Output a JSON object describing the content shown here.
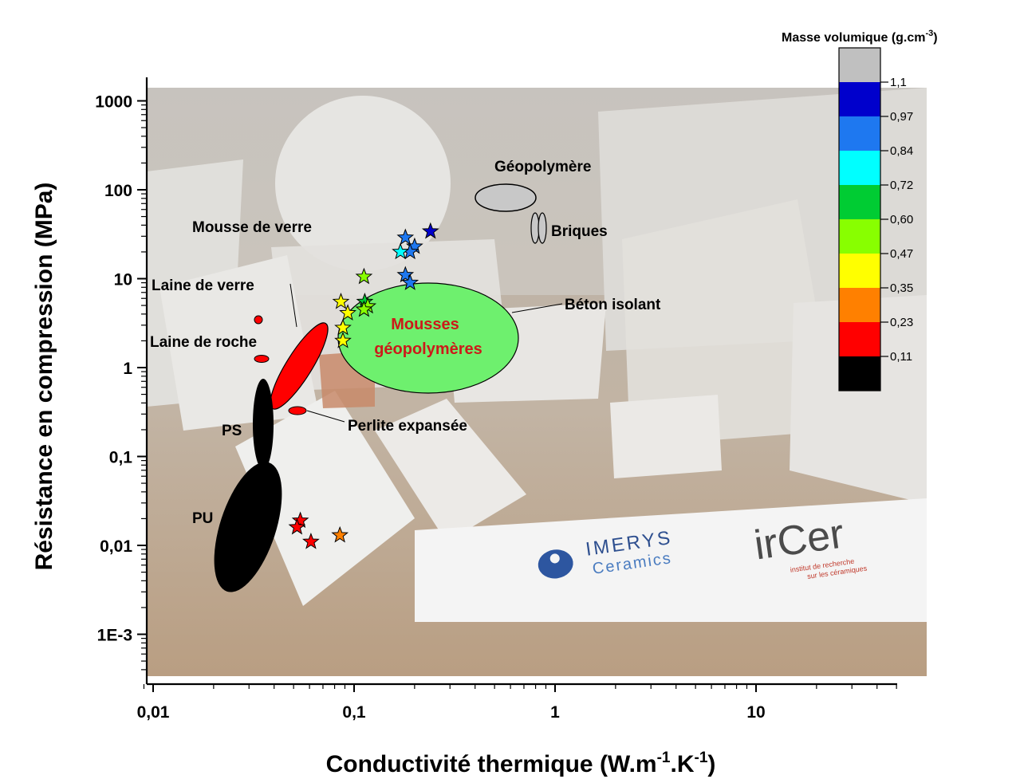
{
  "chart_data": {
    "type": "scatter",
    "x_scale": "log",
    "y_scale": "log",
    "xlim": [
      0.0087,
      50
    ],
    "ylim": [
      0.00032,
      1700
    ],
    "xlabel": {
      "main": "Conductivité thermique (W.m",
      "sup1": "-1",
      "mid": ".K",
      "sup2": "-1",
      "end": ")"
    },
    "ylabel": "Résistance en compression (MPa)",
    "x_ticks": [
      {
        "value": 0.01,
        "label": "0,01"
      },
      {
        "value": 0.1,
        "label": "0,1"
      },
      {
        "value": 1,
        "label": "1"
      },
      {
        "value": 10,
        "label": "10"
      }
    ],
    "y_ticks": [
      {
        "value": 0.001,
        "label": "1E-3"
      },
      {
        "value": 0.01,
        "label": "0,01"
      },
      {
        "value": 0.1,
        "label": "0,1"
      },
      {
        "value": 1,
        "label": "1"
      },
      {
        "value": 10,
        "label": "10"
      },
      {
        "value": 100,
        "label": "100"
      },
      {
        "value": 1000,
        "label": "1000"
      }
    ],
    "colorbar": {
      "title": "Masse volumique (g.cm",
      "title_sup": "-3",
      "title_end": ")",
      "top_color": "#c0c0c0",
      "bands": [
        "#0000cc",
        "#1e78f0",
        "#00ffff",
        "#00cc33",
        "#88ff00",
        "#ffff00",
        "#ff8000",
        "#ff0000",
        "#000000"
      ],
      "ticks": [
        "1,1",
        "0,97",
        "0,84",
        "0,72",
        "0,60",
        "0,47",
        "0,35",
        "0,23",
        "0,11"
      ]
    },
    "materials": [
      {
        "name": "Géopolymère",
        "x": 0.55,
        "y": 80,
        "color": "#c8c8c8"
      },
      {
        "name": "Briques",
        "x": 0.8,
        "y": 30,
        "color": "#c8c8c8"
      },
      {
        "name": "Mousse de verre",
        "x": 0.055,
        "y": 1.3,
        "color": "#ff0000"
      },
      {
        "name": "Laine de verre",
        "x": 0.033,
        "y": 3.3,
        "color": "#ff0000"
      },
      {
        "name": "Laine de roche",
        "x": 0.034,
        "y": 1.1,
        "color": "#ff0000"
      },
      {
        "name": "Perlite expansée",
        "x": 0.046,
        "y": 0.33,
        "color": "#ff0000"
      },
      {
        "name": "PS",
        "x": 0.036,
        "y": 0.1,
        "color": "#000000"
      },
      {
        "name": "PU",
        "x": 0.029,
        "y": 0.01,
        "color": "#000000"
      },
      {
        "name": "Béton isolant",
        "x": 0.2,
        "y": 3,
        "color": "#6ef06e"
      },
      {
        "name": "Mousses géopolymères",
        "x": 0.17,
        "y": 3,
        "color": "#6ef06e"
      }
    ],
    "stars": [
      {
        "x": 0.24,
        "y": 34,
        "color": "#0000cc"
      },
      {
        "x": 0.18,
        "y": 29,
        "color": "#1e78f0"
      },
      {
        "x": 0.2,
        "y": 23,
        "color": "#1e78f0"
      },
      {
        "x": 0.19,
        "y": 20,
        "color": "#1e78f0"
      },
      {
        "x": 0.17,
        "y": 20,
        "color": "#00ffff"
      },
      {
        "x": 0.18,
        "y": 11,
        "color": "#1e78f0"
      },
      {
        "x": 0.19,
        "y": 9,
        "color": "#1e78f0"
      },
      {
        "x": 0.112,
        "y": 10.5,
        "color": "#88ff00"
      },
      {
        "x": 0.086,
        "y": 5.5,
        "color": "#ffff00"
      },
      {
        "x": 0.093,
        "y": 4.1,
        "color": "#ffff00"
      },
      {
        "x": 0.088,
        "y": 2.8,
        "color": "#ffff00"
      },
      {
        "x": 0.088,
        "y": 2.0,
        "color": "#ffff00"
      },
      {
        "x": 0.113,
        "y": 5.5,
        "color": "#00cc33"
      },
      {
        "x": 0.117,
        "y": 4.9,
        "color": "#88ff00"
      },
      {
        "x": 0.112,
        "y": 4.5,
        "color": "#88ff00"
      },
      {
        "x": 0.054,
        "y": 0.019,
        "color": "#ff0000"
      },
      {
        "x": 0.052,
        "y": 0.016,
        "color": "#ff0000"
      },
      {
        "x": 0.061,
        "y": 0.011,
        "color": "#ff0000"
      },
      {
        "x": 0.085,
        "y": 0.013,
        "color": "#ff8000"
      }
    ],
    "background_logos": {
      "imerys_1": "IMERYS",
      "imerys_2": "Ceramics",
      "ircer": "irCer",
      "ircer_sub1": "institut de recherche",
      "ircer_sub2": "sur les céramiques"
    }
  }
}
